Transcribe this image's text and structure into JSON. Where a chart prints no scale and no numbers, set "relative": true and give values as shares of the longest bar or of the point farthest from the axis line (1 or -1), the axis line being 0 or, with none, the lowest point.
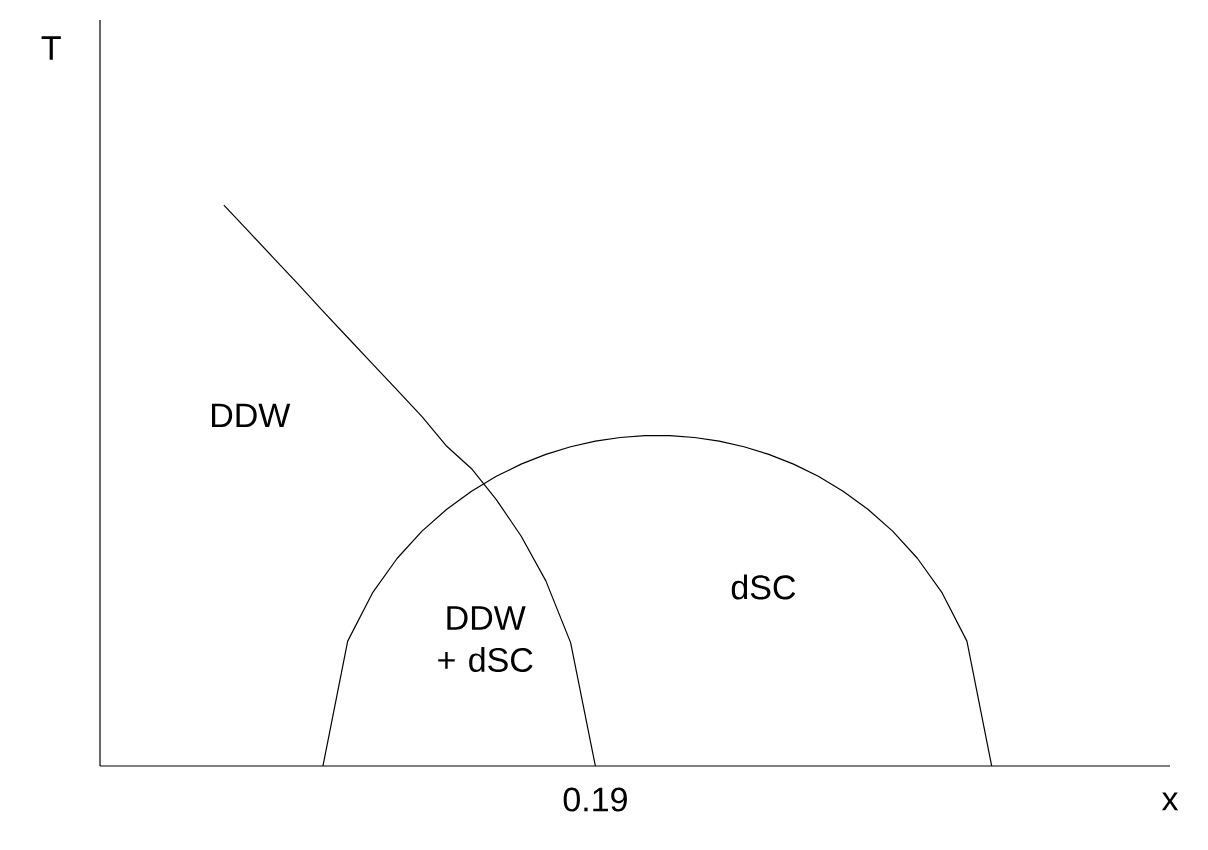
{
  "chart_data": {
    "type": "line",
    "relative": true,
    "xlabel": "x",
    "ylabel": "T",
    "marker": "none",
    "line_style": "solid",
    "annotations": [
      "DDW",
      "DDW + dSC",
      "dSC",
      "0.19"
    ],
    "categories": [
      null,
      null,
      null,
      null,
      null,
      null,
      null,
      null,
      null,
      null,
      null,
      null,
      null,
      null,
      null,
      null,
      null,
      null,
      null,
      null,
      null,
      null,
      null,
      null,
      null,
      null,
      null,
      null,
      null,
      null,
      null,
      null,
      null,
      null,
      null,
      null,
      null,
      null,
      null,
      null,
      null,
      null,
      null,
      null
    ],
    "series": [
      {
        "color": "#000000",
        "values": [
          null,
          null,
          null,
          null,
          null,
          1,
          0.953,
          0.906,
          0.859,
          0.811,
          0.764,
          0.717,
          0.67,
          0.623,
          0.57,
          0.53,
          0.475,
          0.41,
          0.33,
          0.22,
          0,
          null,
          null,
          null,
          null,
          null,
          null,
          null,
          null,
          null,
          null,
          null,
          null,
          null,
          null,
          null,
          null,
          null,
          null,
          null,
          null,
          null,
          null,
          null
        ]
      },
      {
        "color": "#000000",
        "values": [
          null,
          null,
          null,
          null,
          null,
          null,
          null,
          null,
          null,
          0,
          0.2226,
          0.3086,
          0.3704,
          0.4187,
          0.4578,
          0.49,
          0.5165,
          0.5382,
          0.5556,
          0.5692,
          0.5791,
          0.5857,
          0.5889,
          0.5889,
          0.5857,
          0.5791,
          0.5692,
          0.5556,
          0.5382,
          0.5165,
          0.49,
          0.4578,
          0.4187,
          0.3704,
          0.3086,
          0.2226,
          0,
          null,
          null,
          null,
          null,
          null,
          null,
          null
        ]
      }
    ]
  }
}
